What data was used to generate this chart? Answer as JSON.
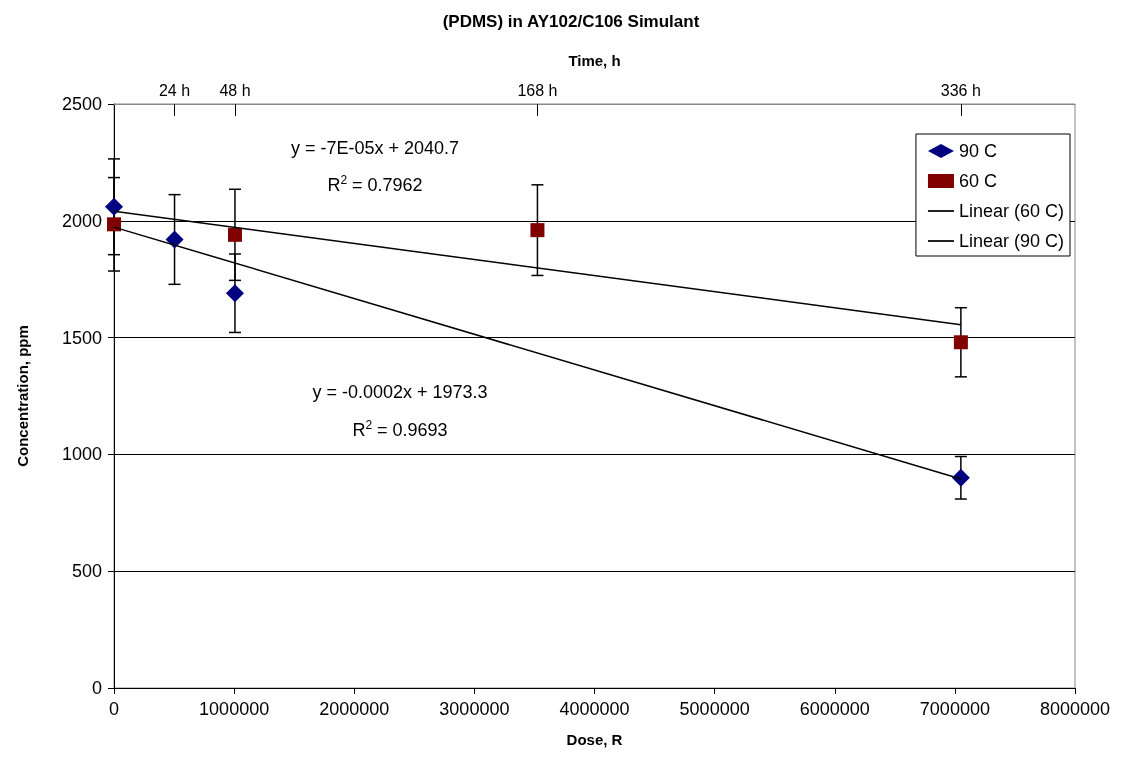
{
  "chart_data": {
    "type": "scatter",
    "title": "(PDMS) in AY102/C106 Simulant",
    "xlabel": "Dose, R",
    "ylabel": "Concentration, ppm",
    "x2label": "Time, h",
    "xlim": [
      0,
      8000000
    ],
    "xticks": [
      0,
      1000000,
      2000000,
      3000000,
      4000000,
      5000000,
      6000000,
      7000000,
      8000000
    ],
    "x2lim": [
      0,
      381.3
    ],
    "x2ticks": [
      {
        "value": 24,
        "label": "24 h"
      },
      {
        "value": 48,
        "label": "48 h"
      },
      {
        "value": 168,
        "label": "168 h"
      },
      {
        "value": 336,
        "label": "336 h"
      }
    ],
    "ylim": [
      0,
      2500
    ],
    "yticks": [
      0,
      500,
      1000,
      1500,
      2000,
      2500
    ],
    "grid": "y",
    "legend": "top right",
    "series": [
      {
        "name": "90 C",
        "marker": "diamond",
        "color": "#000080",
        "x": [
          0,
          504000,
          1007000,
          7050000
        ],
        "values": [
          2060,
          1920,
          1690,
          900
        ],
        "errors": [
          205,
          192,
          168,
          91
        ]
      },
      {
        "name": "60 C",
        "marker": "square",
        "color": "#800000",
        "x": [
          0,
          1007000,
          3525000,
          7050000
        ],
        "values": [
          1985,
          1940,
          1960,
          1480
        ],
        "errors": [
          200,
          195,
          194,
          148
        ]
      },
      {
        "name": "Linear (60 C)",
        "type": "line",
        "marker": "none",
        "color": "#000000",
        "x": [
          0,
          7050000
        ],
        "values": [
          2041,
          1555
        ]
      },
      {
        "name": "Linear (90 C)",
        "type": "line",
        "marker": "none",
        "color": "#000000",
        "x": [
          0,
          7050000
        ],
        "values": [
          1973,
          895
        ]
      }
    ],
    "annotations": [
      "y = -7E-05x + 2040.7",
      "R$^{2}$ = 0.7962",
      "y = -0.0002x + 1973.3",
      "R$^{2}$ = 0.9693"
    ]
  }
}
